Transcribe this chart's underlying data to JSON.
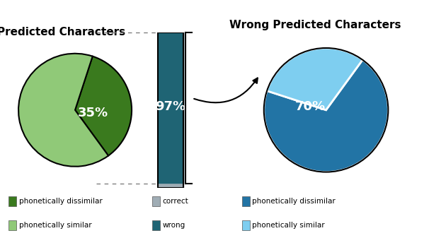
{
  "title_left": "Predicted Characters",
  "title_right": "Wrong Predicted Characters",
  "pie1_values": [
    35,
    65
  ],
  "pie1_colors": [
    "#3a7a1e",
    "#90c978"
  ],
  "pie1_startangle": 72,
  "pie3_values": [
    70,
    30
  ],
  "pie3_colors": [
    "#2274a5",
    "#7ecef0"
  ],
  "pie3_startangle": 54,
  "bar_wrong_color": "#1f6474",
  "bar_correct_color": "#a0adb5",
  "legend_left": [
    {
      "label": "phonetically dissimilar",
      "color": "#3a7a1e"
    },
    {
      "label": "phonetically similar",
      "color": "#90c978"
    }
  ],
  "legend_mid": [
    {
      "label": "correct",
      "color": "#a0adb5"
    },
    {
      "label": "wrong",
      "color": "#1f6474"
    }
  ],
  "legend_right": [
    {
      "label": "phonetically dissimilar",
      "color": "#2274a5"
    },
    {
      "label": "phonetically similar",
      "color": "#7ecef0"
    }
  ],
  "bg_color": "#ffffff",
  "text_color": "#ffffff",
  "pct_fontsize": 13,
  "title_fontsize": 11
}
